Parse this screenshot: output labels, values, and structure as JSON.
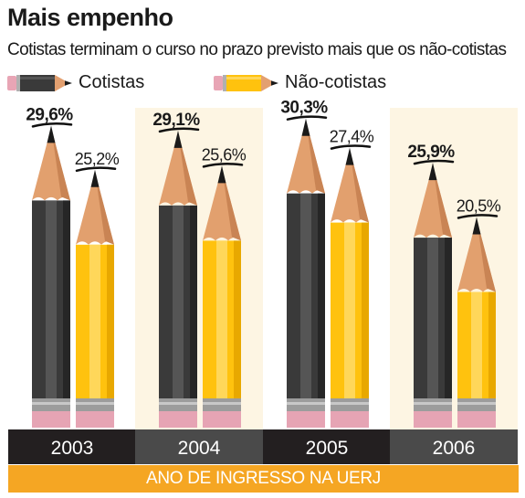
{
  "header": {
    "title": "Mais empenho",
    "subtitle": "Cotistas terminam o curso no prazo previsto mais que os não-cotistas"
  },
  "legend": [
    {
      "label": "Cotistas",
      "color": "#3a3a3a"
    },
    {
      "label": "Não-cotistas",
      "color": "#ffc20e"
    }
  ],
  "chart_data": {
    "type": "bar",
    "categories": [
      "2003",
      "2004",
      "2005",
      "2006"
    ],
    "series": [
      {
        "name": "Cotistas",
        "values": [
          29.6,
          29.1,
          30.3,
          25.9
        ],
        "labels": [
          "29,6%",
          "29,1%",
          "30,3%",
          "25,9%"
        ],
        "color": "#3a3a3a"
      },
      {
        "name": "Não-cotistas",
        "values": [
          25.2,
          25.6,
          27.4,
          20.5
        ],
        "labels": [
          "25,2%",
          "25,6%",
          "27,4%",
          "20,5%"
        ],
        "color": "#ffc20e"
      }
    ],
    "title": "Mais empenho",
    "subtitle": "Cotistas terminam o curso no prazo previsto mais que os não-cotistas",
    "xlabel": "ANO DE INGRESSO NA UERJ",
    "ylabel": "",
    "ylim": [
      0,
      32
    ],
    "grid": false,
    "legend_position": "top-left"
  }
}
